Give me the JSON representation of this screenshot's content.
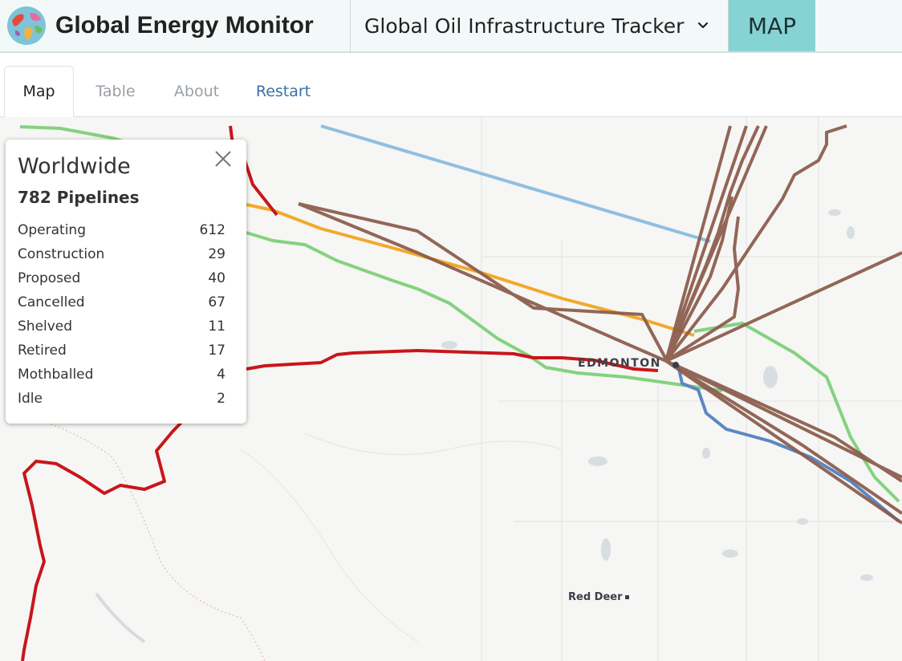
{
  "header": {
    "brand": "Global Energy Monitor",
    "logo_icon": "globe-icon",
    "tracker": "Global Oil Infrastructure Tracker",
    "tracker_icon": "chevron-down-icon",
    "map_button": "MAP"
  },
  "tabs": [
    {
      "label": "Map"
    },
    {
      "label": "Table"
    },
    {
      "label": "About"
    },
    {
      "label": "Restart"
    }
  ],
  "map": {
    "cities": {
      "edmonton": "EDMONTON",
      "red_deer": "Red Deer"
    },
    "legend_colors": {
      "operating": "#8a5a4a",
      "construction": "#f2a92a",
      "proposed": "#84d27f",
      "cancelled": "#c8161b",
      "other_blue": "#5b87c2",
      "light_blue": "#8fbfe0"
    }
  },
  "panel": {
    "title": "Worldwide",
    "subtitle": "782 Pipelines",
    "close_icon": "close-icon",
    "rows": [
      {
        "label": "Operating",
        "value": "612"
      },
      {
        "label": "Construction",
        "value": "29"
      },
      {
        "label": "Proposed",
        "value": "40"
      },
      {
        "label": "Cancelled",
        "value": "67"
      },
      {
        "label": "Shelved",
        "value": "11"
      },
      {
        "label": "Retired",
        "value": "17"
      },
      {
        "label": "Mothballed",
        "value": "4"
      },
      {
        "label": "Idle",
        "value": "2"
      }
    ]
  }
}
